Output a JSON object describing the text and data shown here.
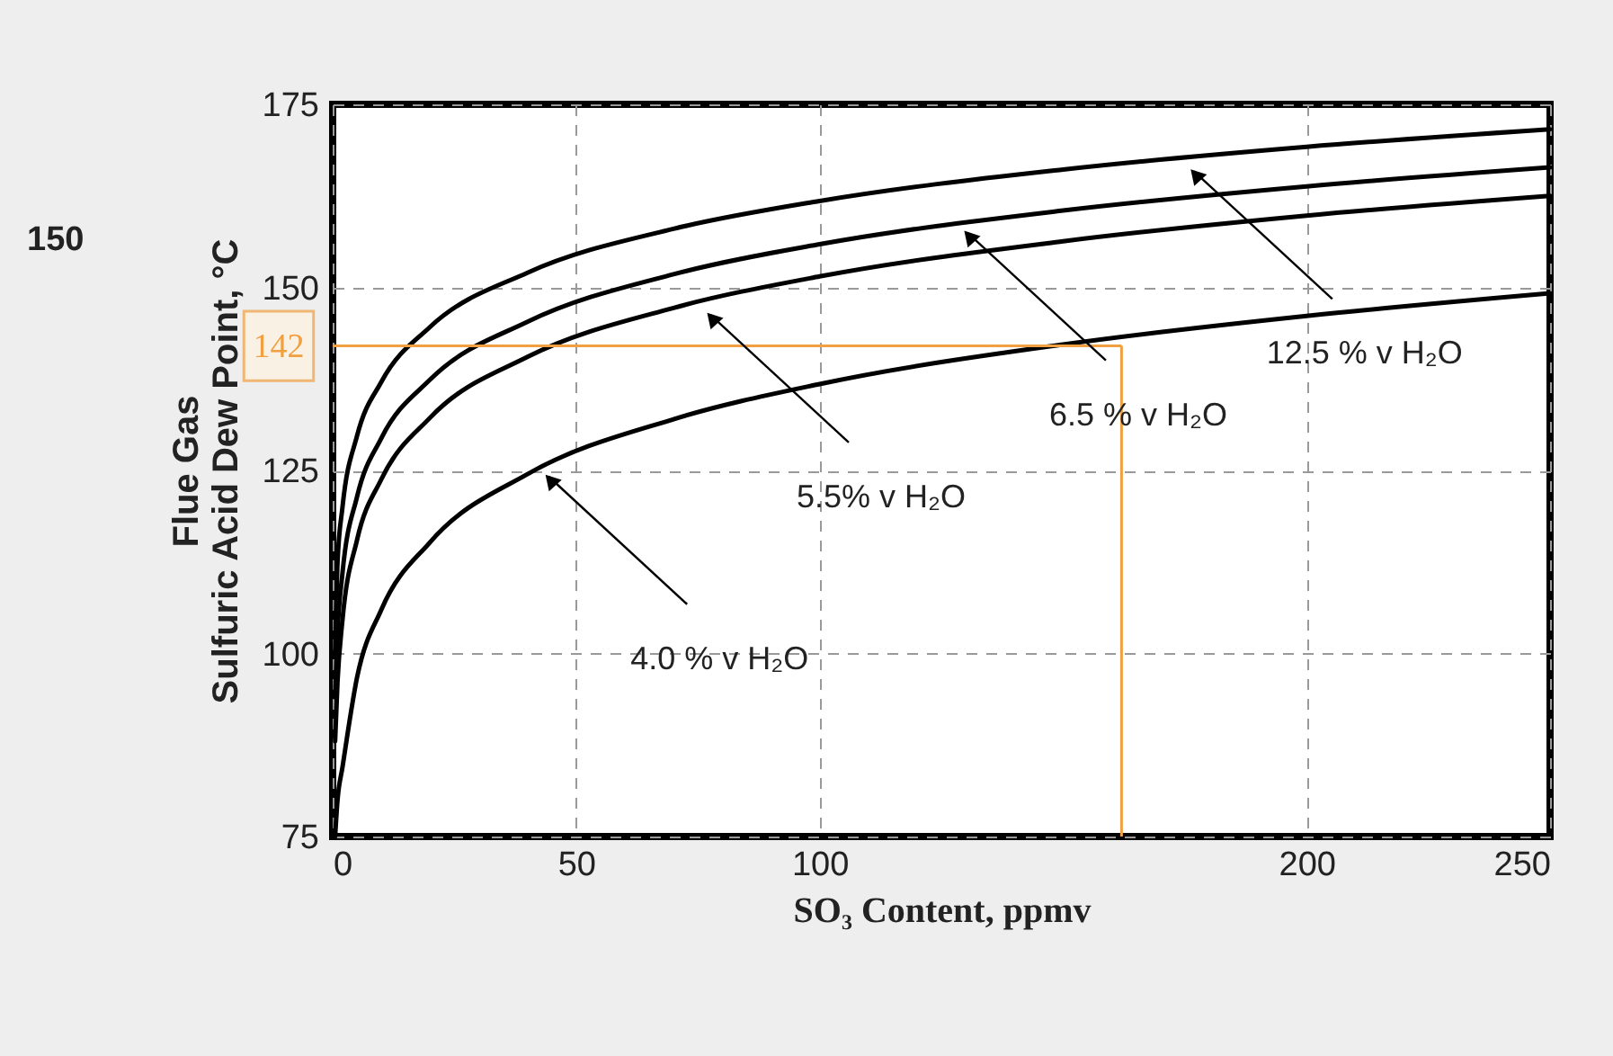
{
  "chart_data": {
    "type": "line",
    "xlabel": "SO₃ Content, ppmv",
    "ylabel": "Flue Gas\nSulfuric Acid Dew Point, °C",
    "xlim": [
      0,
      250
    ],
    "xticks": [
      0,
      50,
      100,
      200,
      250
    ],
    "ylim": [
      75,
      175
    ],
    "yticks": [
      75,
      100,
      125,
      150,
      175
    ],
    "grid": true,
    "line_style": "solid",
    "marker": "none",
    "series": [
      {
        "color": "#000000",
        "x": [
          0.5,
          1,
          2,
          5,
          10,
          20,
          40,
          70,
          100,
          150,
          200,
          250
        ],
        "values": [
          100,
          112.5,
          119.9,
          129.7,
          137.1,
          144.6,
          152.0,
          158.0,
          161.8,
          166.1,
          169.2,
          171.6
        ]
      },
      {
        "color": "#000000",
        "x": [
          0.5,
          1,
          2,
          5,
          10,
          20,
          40,
          70,
          100,
          150,
          200,
          250
        ],
        "values": [
          94,
          102.9,
          110.9,
          121.4,
          129.4,
          137.4,
          145.3,
          151.8,
          155.9,
          160.5,
          163.8,
          166.4
        ]
      },
      {
        "color": "#000000",
        "x": [
          0.5,
          1,
          2,
          5,
          10,
          20,
          40,
          70,
          100,
          150,
          200,
          250
        ],
        "values": [
          88,
          96.2,
          104.5,
          115.5,
          123.8,
          132.2,
          140.5,
          147.2,
          151.5,
          156.3,
          159.8,
          162.5
        ]
      },
      {
        "color": "#000000",
        "x": [
          0.5,
          1,
          2,
          5,
          10,
          20,
          40,
          70,
          100,
          150,
          200,
          250
        ],
        "values": [
          75,
          80,
          84.4,
          96.7,
          106,
          115.2,
          124.5,
          132,
          136.8,
          142.2,
          146.1,
          149.2
        ]
      }
    ],
    "ref_lines": [
      {
        "axis": "y",
        "value": 142,
        "label": "142",
        "color": "#f0a040"
      },
      {
        "axis": "x",
        "value": 162,
        "color": "#f0a040"
      }
    ],
    "annotations": [
      {
        "text": "4.0 % v H₂O",
        "x": 42.5,
        "y": 125.4
      },
      {
        "text": "5.5% v H₂O",
        "x": 75.7,
        "y": 147.5
      },
      {
        "text": "6.5 % v H₂O",
        "x": 128.5,
        "y": 158.7
      },
      {
        "text": "12.5 % v H₂O",
        "x": 175,
        "y": 167.1
      },
      "150"
    ]
  }
}
